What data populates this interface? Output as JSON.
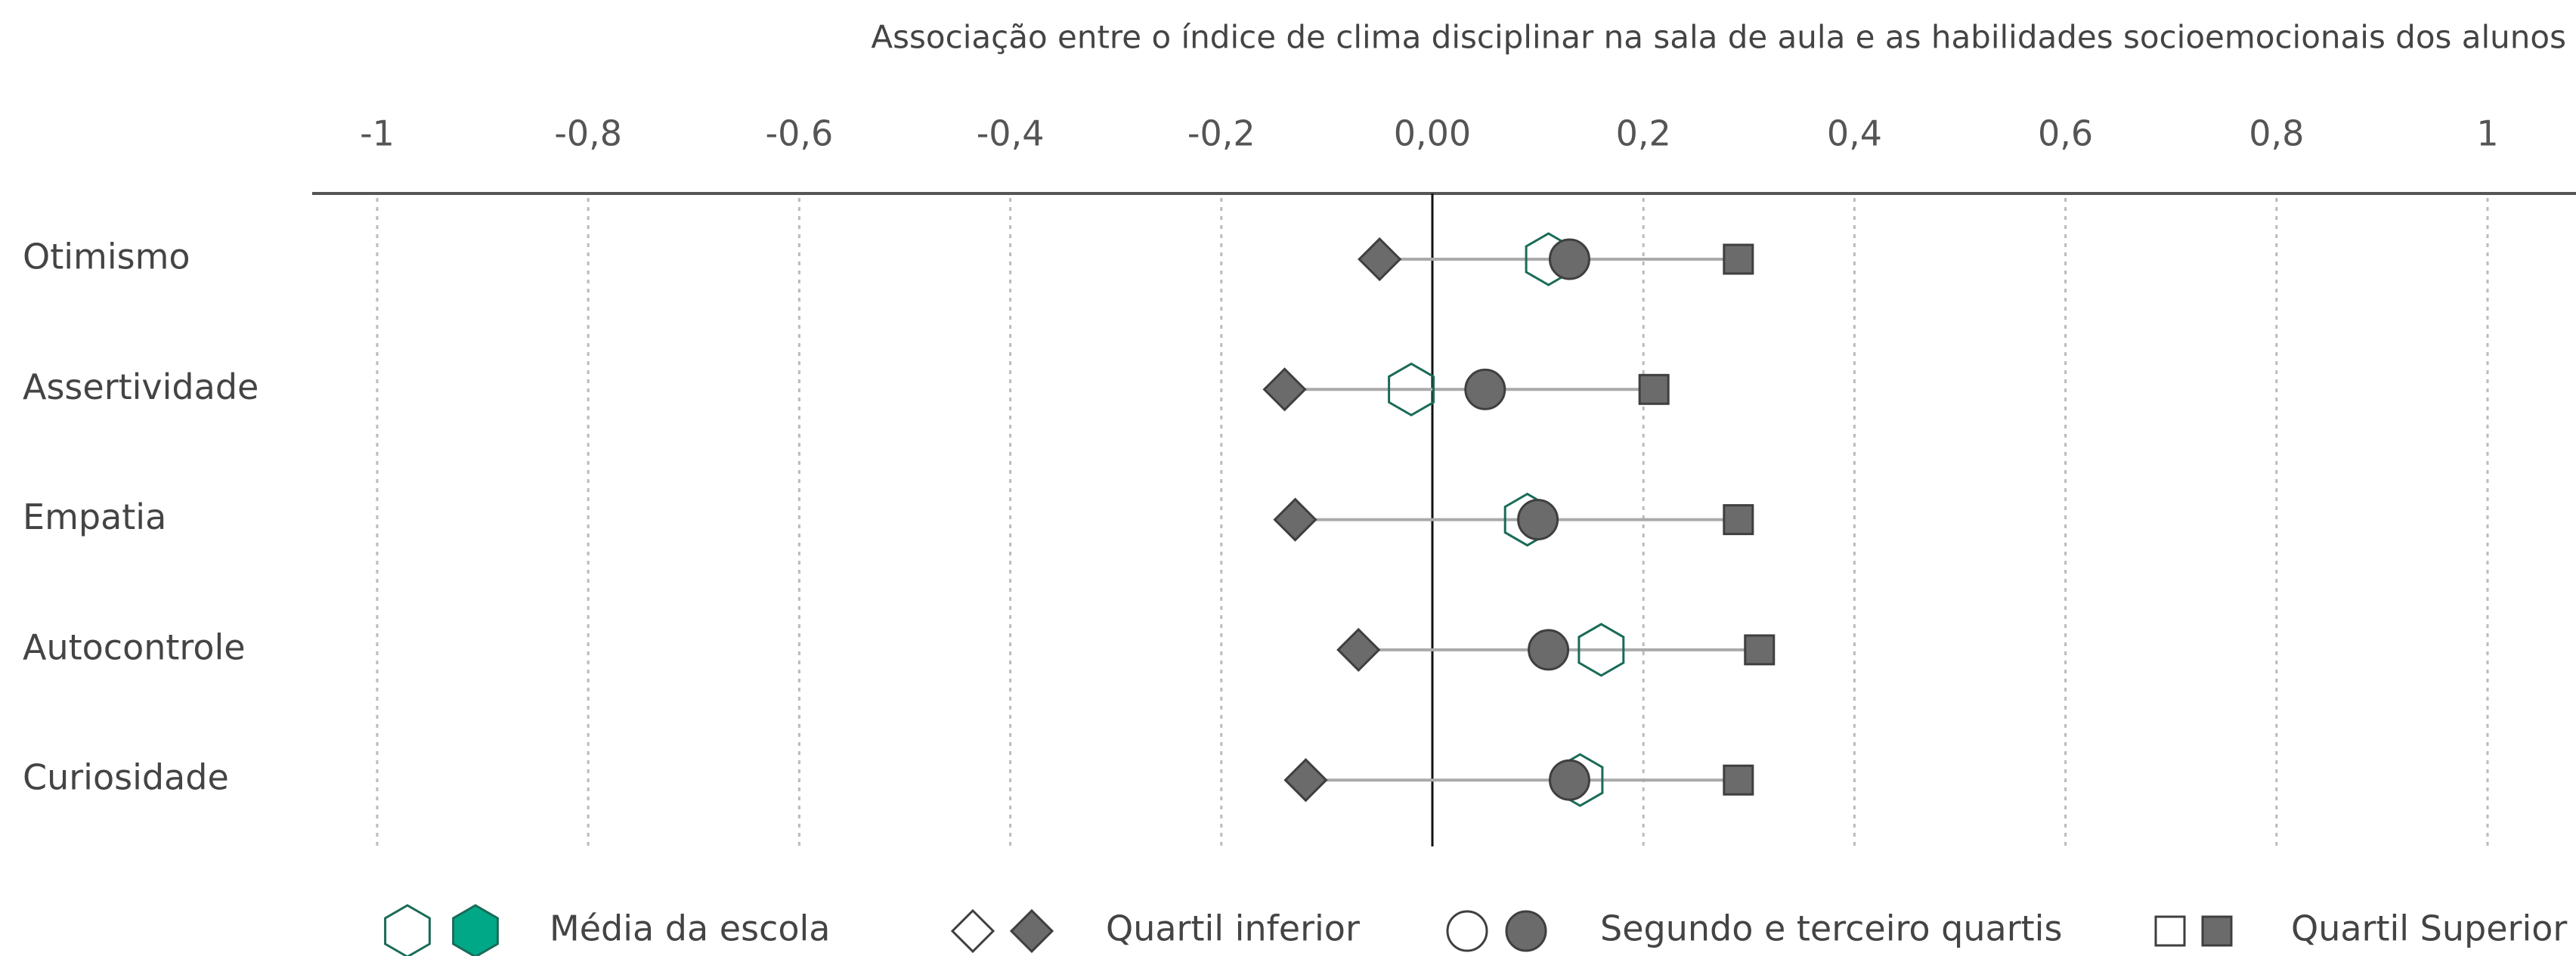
{
  "chart_data": {
    "type": "dot",
    "title": "Associação entre o índice de clima disciplinar na sala de aula e as habilidades socioemocionais dos alunos",
    "categories": [
      "Otimismo",
      "Assertividade",
      "Empatia",
      "Autocontrole",
      "Curiosidade"
    ],
    "series": [
      {
        "name": "Média da escola",
        "marker": "hexagon",
        "color": "#00a887",
        "values": [
          0.11,
          -0.02,
          0.09,
          0.16,
          0.14
        ]
      },
      {
        "name": "Quartil inferior",
        "marker": "diamond",
        "color": "#6b6b6b",
        "values": [
          -0.05,
          -0.14,
          -0.13,
          -0.07,
          -0.12
        ]
      },
      {
        "name": "Segundo e terceiro quartis",
        "marker": "circle",
        "color": "#6b6b6b",
        "values": [
          0.13,
          0.05,
          0.1,
          0.11,
          0.13
        ]
      },
      {
        "name": "Quartil Superior",
        "marker": "square",
        "color": "#6b6b6b",
        "values": [
          0.29,
          0.21,
          0.29,
          0.31,
          0.29
        ]
      }
    ],
    "xlim": [
      -1,
      1
    ],
    "xticks": [
      -1,
      {
        "value": -0.8,
        "label": "-0,8"
      },
      {
        "value": -0.6,
        "label": "-0,6"
      },
      {
        "value": -0.4,
        "label": "-0,4"
      },
      {
        "value": -0.2,
        "label": "-0,2"
      },
      {
        "value": 0,
        "label": "0,00"
      },
      {
        "value": 0.2,
        "label": "0,2"
      },
      {
        "value": 0.4,
        "label": "0,4"
      },
      {
        "value": 0.6,
        "label": "0,6"
      },
      {
        "value": 0.8,
        "label": "0,8"
      },
      1
    ],
    "grid": true
  }
}
